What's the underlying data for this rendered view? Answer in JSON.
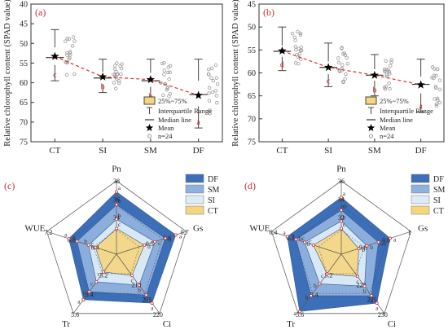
{
  "colors": {
    "CT": "#f6d57e",
    "SI": "#dcecf6",
    "SM": "#8fb1dd",
    "DF": "#3d6fb8",
    "box_edge": "#555555",
    "mean_line": "#e03030",
    "points": "#9a9a9a",
    "letter": "#cc3333"
  },
  "chart_data": [
    {
      "panel": "(a)",
      "type": "box",
      "ylabel": "Relative chlorophyll content (SPAD value)",
      "ylim": [
        40,
        75
      ],
      "yticks": [
        40,
        45,
        50,
        55,
        60,
        65,
        70,
        75
      ],
      "categories": [
        "CT",
        "SI",
        "SM",
        "DF"
      ],
      "boxes": [
        {
          "q1": 51.0,
          "median": 53.6,
          "q3": 55.5,
          "whisker_low": 46.5,
          "whisker_high": 59.5,
          "mean": 53.3,
          "letter": "c"
        },
        {
          "q1": 57.2,
          "median": 58.8,
          "q3": 60.3,
          "whisker_low": 54.0,
          "whisker_high": 62.5,
          "mean": 58.5,
          "letter": "b"
        },
        {
          "q1": 57.5,
          "median": 59.5,
          "q3": 61.0,
          "whisker_low": 54.0,
          "whisker_high": 65.0,
          "mean": 59.2,
          "letter": "b"
        },
        {
          "q1": 59.5,
          "median": 63.0,
          "q3": 66.0,
          "whisker_low": 54.0,
          "whisker_high": 71.5,
          "mean": 63.2,
          "letter": "a"
        }
      ],
      "legend": {
        "box": "25%~75%",
        "whisker": "Interquartile Range",
        "median": "Median line",
        "mean": "Mean",
        "n": "n=24"
      }
    },
    {
      "panel": "(b)",
      "type": "box",
      "ylabel": "Relative chlorophyll content (SPAD value)",
      "ylim": [
        45,
        75
      ],
      "yticks": [
        45,
        50,
        55,
        60,
        65,
        70,
        75
      ],
      "categories": [
        "CT",
        "SI",
        "SM",
        "DF"
      ],
      "boxes": [
        {
          "q1": 54.0,
          "median": 55.3,
          "q3": 56.5,
          "whisker_low": 50.0,
          "whisker_high": 59.5,
          "mean": 55.2,
          "letter": "d"
        },
        {
          "q1": 57.5,
          "median": 58.8,
          "q3": 60.3,
          "whisker_low": 53.5,
          "whisker_high": 63.0,
          "mean": 58.8,
          "letter": "c"
        },
        {
          "q1": 59.2,
          "median": 60.5,
          "q3": 61.7,
          "whisker_low": 56.0,
          "whisker_high": 65.0,
          "mean": 60.5,
          "letter": "b"
        },
        {
          "q1": 60.8,
          "median": 62.5,
          "q3": 64.5,
          "whisker_low": 57.0,
          "whisker_high": 68.5,
          "mean": 62.6,
          "letter": "a"
        }
      ],
      "legend": {
        "box": "25%~75%",
        "whisker": "Interquartile Range",
        "median": "Median line",
        "mean": "Mean",
        "n": "n=24"
      }
    },
    {
      "panel": "(c)",
      "type": "radar",
      "axes": [
        {
          "name": "Pn",
          "min": 30,
          "max": 38,
          "ticks": [
            34,
            36,
            38
          ]
        },
        {
          "name": "Gs",
          "min": 0.3,
          "max": 0.7,
          "ticks": [
            0.5,
            0.6,
            0.7
          ]
        },
        {
          "name": "Ci",
          "min": 200,
          "max": 220,
          "ticks": [
            210,
            215,
            220
          ]
        },
        {
          "name": "Tr",
          "min": 5.0,
          "max": 5.6,
          "ticks": [
            5.2,
            5.4,
            5.6
          ]
        },
        {
          "name": "WUE",
          "min": 6.0,
          "max": 7.2,
          "ticks": [
            6.4,
            6.8,
            7.2
          ]
        }
      ],
      "series": [
        {
          "name": "DF",
          "values": [
            36.8,
            0.64,
            216.5,
            5.46,
            6.82
          ],
          "letters": [
            "a",
            "a",
            "a",
            "a",
            "a"
          ]
        },
        {
          "name": "SM",
          "values": [
            35.4,
            0.58,
            213.8,
            5.38,
            6.68
          ],
          "letters": [
            "b",
            "b",
            "b",
            "b",
            "b"
          ]
        },
        {
          "name": "SI",
          "values": [
            33.8,
            0.52,
            210.5,
            5.28,
            6.48
          ],
          "letters": [
            "b",
            "c",
            "b",
            "c",
            "b"
          ]
        },
        {
          "name": "CT",
          "values": [
            32.8,
            0.46,
            207.2,
            5.18,
            6.36
          ],
          "letters": [
            "c",
            "d",
            "c",
            "c",
            "c"
          ]
        }
      ]
    },
    {
      "panel": "(d)",
      "type": "radar",
      "axes": [
        {
          "name": "Pn",
          "min": 28,
          "max": 36,
          "ticks": [
            32,
            34,
            36
          ]
        },
        {
          "name": "Gs",
          "min": 0.4,
          "max": 1.0,
          "ticks": [
            0.6,
            0.8,
            1.0
          ]
        },
        {
          "name": "Ci",
          "min": 210,
          "max": 230,
          "ticks": [
            220,
            225,
            230
          ]
        },
        {
          "name": "Tr",
          "min": 5.0,
          "max": 5.6,
          "ticks": [
            5.2,
            5.4,
            5.6
          ]
        },
        {
          "name": "WUE",
          "min": 5.6,
          "max": 6.4,
          "ticks": [
            6.0,
            6.2,
            6.4
          ]
        }
      ],
      "series": [
        {
          "name": "DF",
          "values": [
            34.2,
            0.82,
            226.5,
            5.58,
            6.22
          ],
          "letters": [
            "a",
            "a",
            "a",
            "a",
            "a"
          ]
        },
        {
          "name": "SM",
          "values": [
            32.8,
            0.72,
            224.0,
            5.42,
            6.12
          ],
          "letters": [
            "ab",
            "ab",
            "b",
            "b",
            "b"
          ]
        },
        {
          "name": "SI",
          "values": [
            31.6,
            0.62,
            220.8,
            5.3,
            6.02
          ],
          "letters": [
            "b",
            "b",
            "b",
            "b",
            "bc"
          ]
        },
        {
          "name": "CT",
          "values": [
            30.8,
            0.55,
            217.5,
            5.2,
            5.92
          ],
          "letters": [
            "c",
            "b",
            "c",
            "c",
            "c"
          ]
        }
      ]
    }
  ]
}
